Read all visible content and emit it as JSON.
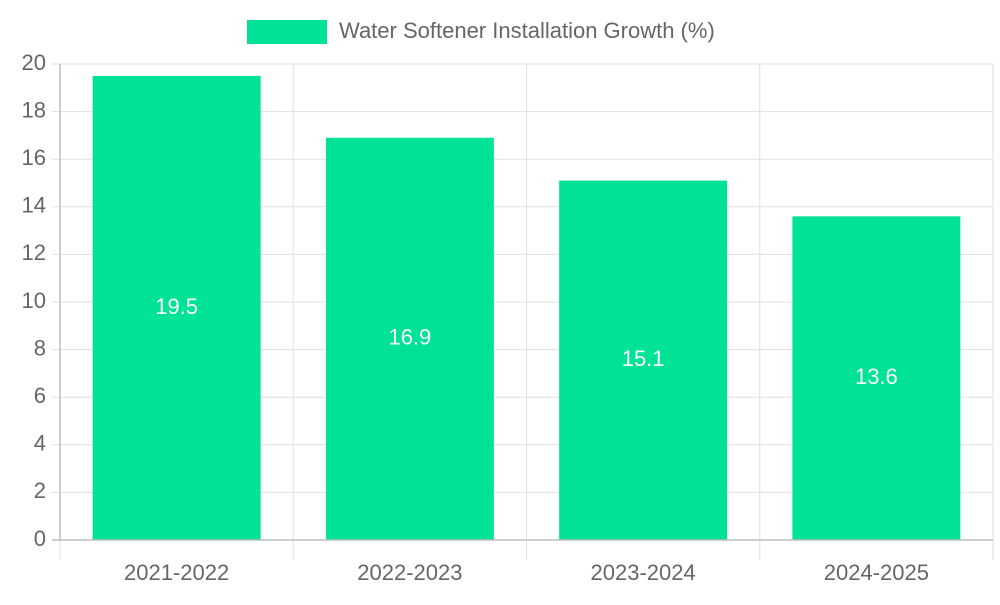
{
  "chart_data": {
    "type": "bar",
    "title": "",
    "xlabel": "",
    "ylabel": "",
    "categories": [
      "2021-2022",
      "2022-2023",
      "2023-2024",
      "2024-2025"
    ],
    "series": [
      {
        "name": "Water Softener Installation Growth (%)",
        "values": [
          19.5,
          16.9,
          15.1,
          13.6
        ],
        "color": "#00e396"
      }
    ],
    "ylim": [
      0,
      20
    ],
    "yticks": [
      0,
      2,
      4,
      6,
      8,
      10,
      12,
      14,
      16,
      18,
      20
    ],
    "ytick_labels": [
      "0",
      "2",
      "4",
      "6",
      "8",
      "10",
      "12",
      "14",
      "16",
      "18",
      "20"
    ],
    "data_labels": [
      "19.5",
      "16.9",
      "15.1",
      "13.6"
    ],
    "grid": true,
    "legend": {
      "position": "top-center"
    }
  },
  "colors": {
    "bar": "#00e396",
    "grid": "#e0e0e0",
    "axis": "#bdbdbd",
    "tick_text": "#666666",
    "data_label_text": "#ffffff"
  }
}
